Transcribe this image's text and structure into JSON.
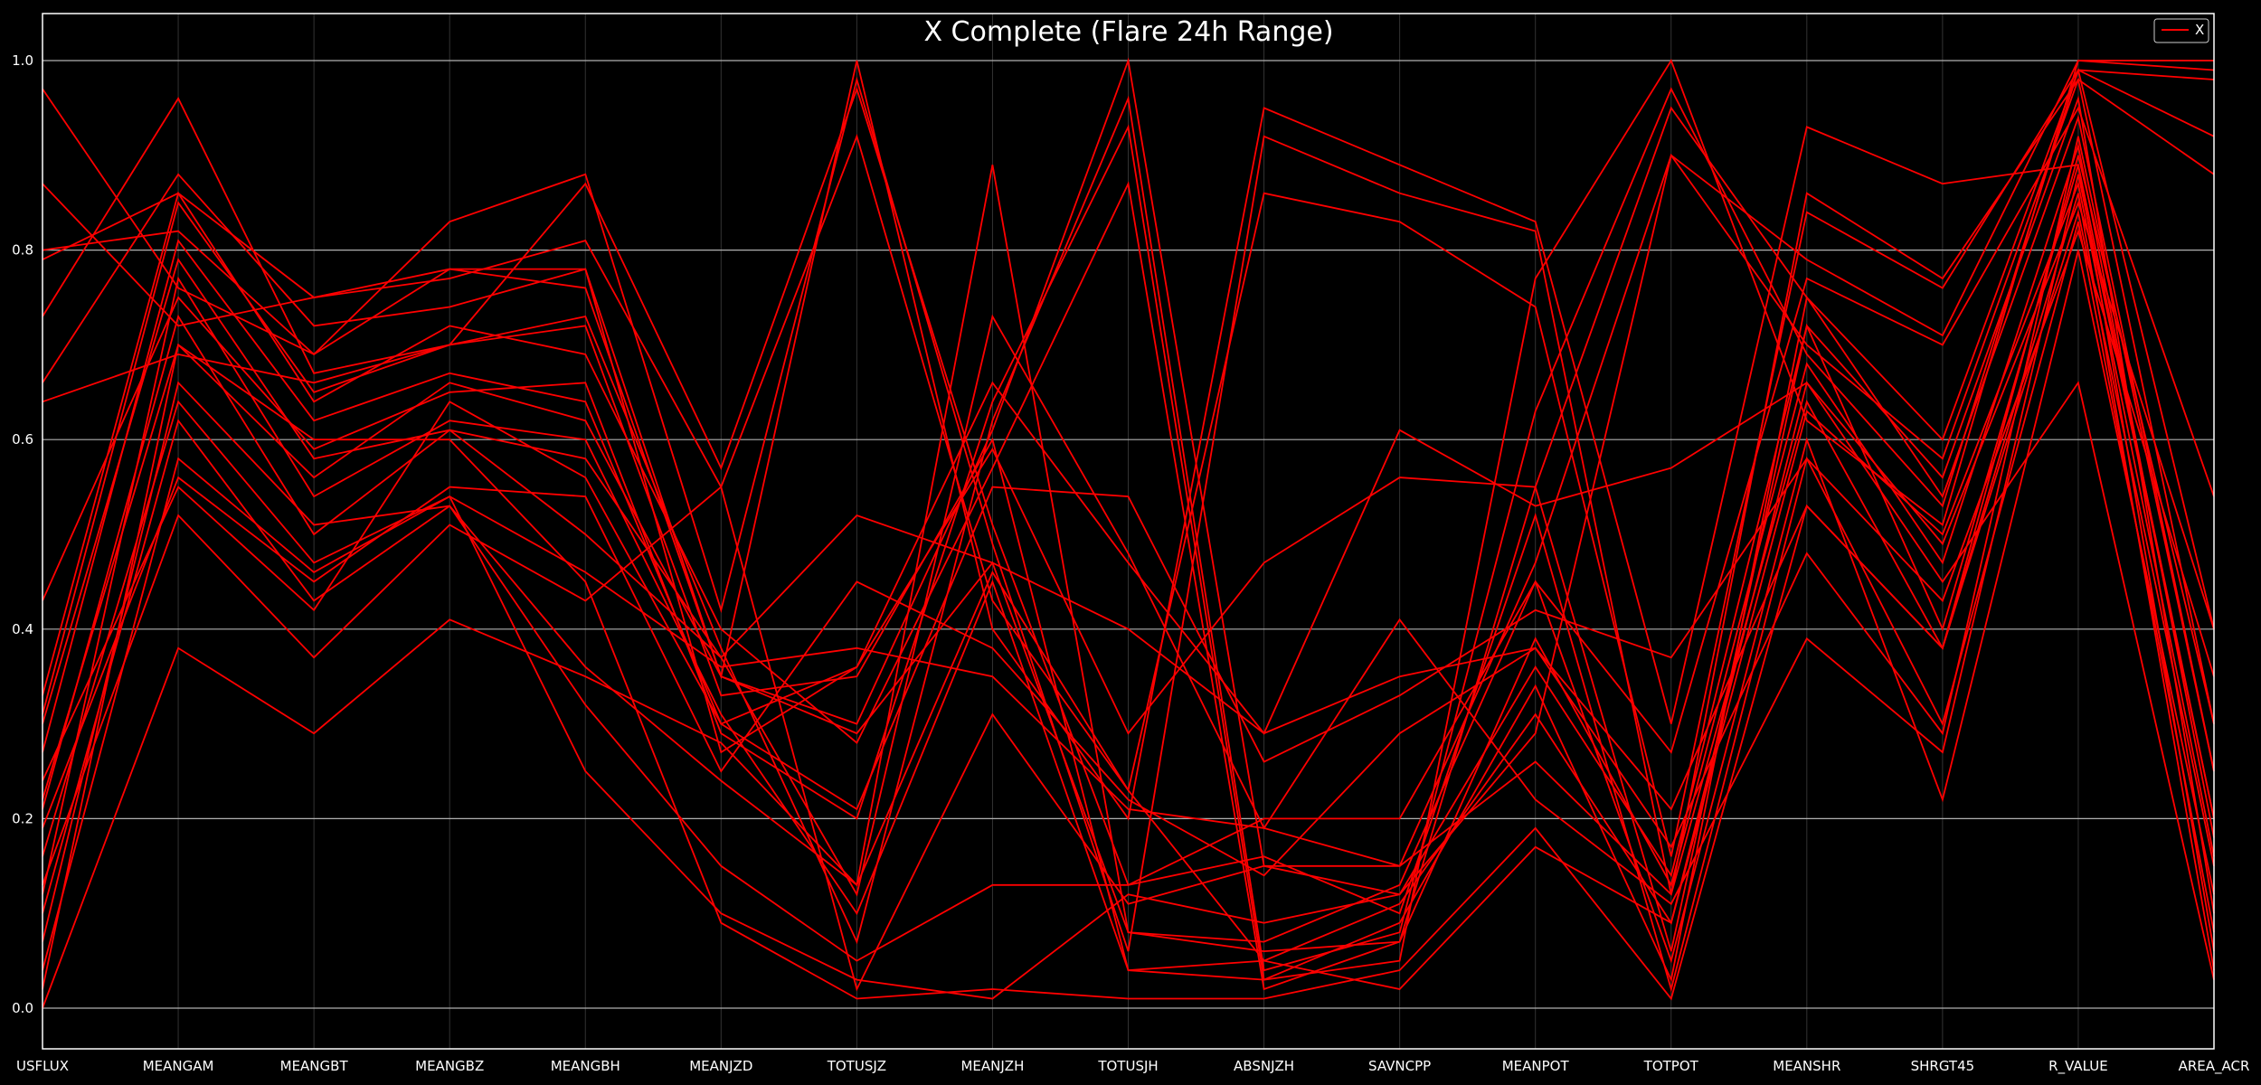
{
  "chart_data": {
    "type": "line",
    "title": "X Complete (Flare 24h Range)",
    "xlabel": "",
    "ylabel": "",
    "ylim": [
      -0.02,
      1.05
    ],
    "yticks": [
      0.0,
      0.2,
      0.4,
      0.6,
      0.8,
      1.0
    ],
    "ytick_labels": [
      "0.0",
      "0.2",
      "0.4",
      "0.6",
      "0.8",
      "1.0"
    ],
    "grid": true,
    "legend": {
      "placement": "top-right",
      "entries": [
        "X"
      ]
    },
    "categories": [
      "USFLUX",
      "MEANGAM",
      "MEANGBT",
      "MEANGBZ",
      "MEANGBH",
      "MEANJZD",
      "TOTUSJZ",
      "MEANJZH",
      "TOTUSJH",
      "ABSNJZH",
      "SAVNCPP",
      "MEANPOT",
      "TOTPOT",
      "MEANSHR",
      "SHRGT45",
      "R_VALUE",
      "AREA_ACR"
    ],
    "colors": {
      "background": "#000000",
      "series": "#ff0000",
      "grid": "#b0b0b0",
      "text": "#ffffff"
    },
    "series": [
      {
        "values": [
          0.97,
          0.76,
          0.69,
          0.78,
          0.78,
          0.27,
          0.36,
          0.59,
          0.29,
          0.47,
          0.56,
          0.55,
          0.06,
          0.72,
          0.56,
          0.96,
          0.1
        ]
      },
      {
        "values": [
          0.87,
          0.72,
          0.75,
          0.78,
          0.76,
          0.35,
          1.0,
          0.4,
          0.2,
          0.95,
          0.89,
          0.83,
          0.3,
          0.93,
          0.87,
          0.89,
          0.2
        ]
      },
      {
        "values": [
          0.8,
          0.82,
          0.69,
          0.83,
          0.88,
          0.42,
          0.98,
          0.49,
          0.06,
          0.92,
          0.86,
          0.82,
          0.12,
          0.86,
          0.77,
          0.98,
          0.3
        ]
      },
      {
        "values": [
          0.79,
          0.86,
          0.75,
          0.77,
          0.81,
          0.55,
          0.92,
          0.43,
          0.23,
          0.86,
          0.83,
          0.74,
          0.16,
          0.84,
          0.76,
          0.99,
          0.4
        ]
      },
      {
        "values": [
          0.73,
          0.96,
          0.67,
          0.7,
          0.87,
          0.57,
          0.97,
          0.51,
          0.13,
          0.2,
          0.2,
          0.45,
          0.27,
          0.77,
          0.7,
          0.95,
          0.54
        ]
      },
      {
        "values": [
          0.66,
          0.88,
          0.72,
          0.74,
          0.78,
          0.35,
          0.3,
          0.61,
          1.0,
          0.15,
          0.12,
          0.29,
          0.9,
          0.79,
          0.71,
          1.0,
          0.99
        ]
      },
      {
        "values": [
          0.64,
          0.69,
          0.66,
          0.7,
          0.73,
          0.38,
          0.07,
          0.62,
          0.96,
          0.04,
          0.08,
          0.63,
          0.97,
          0.69,
          0.53,
          0.99,
          0.98
        ]
      },
      {
        "values": [
          0.43,
          0.75,
          0.59,
          0.65,
          0.66,
          0.29,
          0.2,
          0.64,
          0.93,
          0.03,
          0.05,
          0.77,
          1.0,
          0.62,
          0.51,
          1.0,
          1.0
        ]
      },
      {
        "values": [
          0.33,
          0.86,
          0.64,
          0.72,
          0.69,
          0.4,
          0.28,
          0.57,
          0.87,
          0.02,
          0.07,
          0.55,
          0.95,
          0.75,
          0.6,
          0.99,
          0.92
        ]
      },
      {
        "values": [
          0.3,
          0.79,
          0.58,
          0.61,
          0.58,
          0.37,
          0.12,
          0.73,
          0.48,
          0.19,
          0.15,
          0.47,
          0.9,
          0.7,
          0.58,
          0.98,
          0.88
        ]
      },
      {
        "values": [
          0.27,
          0.81,
          0.62,
          0.67,
          0.64,
          0.3,
          0.36,
          0.66,
          0.47,
          0.29,
          0.61,
          0.53,
          0.57,
          0.66,
          0.49,
          0.85,
          0.4
        ]
      },
      {
        "values": [
          0.24,
          0.55,
          0.42,
          0.64,
          0.56,
          0.3,
          0.21,
          0.55,
          0.54,
          0.26,
          0.33,
          0.42,
          0.37,
          0.58,
          0.43,
          0.82,
          0.35
        ]
      },
      {
        "values": [
          0.21,
          0.73,
          0.5,
          0.61,
          0.5,
          0.37,
          0.52,
          0.47,
          0.4,
          0.29,
          0.35,
          0.38,
          0.21,
          0.53,
          0.38,
          0.9,
          0.3
        ]
      },
      {
        "values": [
          0.19,
          0.56,
          0.45,
          0.55,
          0.54,
          0.25,
          0.45,
          0.38,
          0.22,
          0.14,
          0.29,
          0.38,
          0.17,
          0.48,
          0.29,
          0.92,
          0.25
        ]
      },
      {
        "values": [
          0.16,
          0.64,
          0.47,
          0.54,
          0.46,
          0.36,
          0.38,
          0.35,
          0.21,
          0.19,
          0.41,
          0.22,
          0.11,
          0.39,
          0.27,
          0.88,
          0.2
        ]
      },
      {
        "values": [
          0.13,
          0.52,
          0.37,
          0.51,
          0.43,
          0.55,
          0.02,
          0.31,
          0.11,
          0.15,
          0.15,
          0.26,
          0.12,
          0.64,
          0.38,
          0.84,
          0.15
        ]
      },
      {
        "values": [
          0.1,
          0.62,
          0.43,
          0.53,
          0.36,
          0.24,
          0.13,
          0.89,
          0.08,
          0.07,
          0.13,
          0.45,
          0.05,
          0.6,
          0.22,
          0.8,
          0.12
        ]
      },
      {
        "values": [
          0.07,
          0.66,
          0.51,
          0.53,
          0.32,
          0.15,
          0.05,
          0.13,
          0.13,
          0.16,
          0.1,
          0.52,
          0.02,
          0.58,
          0.3,
          0.83,
          0.08
        ]
      },
      {
        "values": [
          0.04,
          0.58,
          0.46,
          0.54,
          0.25,
          0.1,
          0.03,
          0.01,
          0.12,
          0.09,
          0.12,
          0.36,
          0.14,
          0.72,
          0.4,
          0.89,
          0.06
        ]
      },
      {
        "values": [
          0.02,
          0.7,
          0.6,
          0.6,
          0.45,
          0.09,
          0.01,
          0.02,
          0.01,
          0.01,
          0.04,
          0.19,
          0.01,
          0.53,
          0.38,
          0.86,
          0.04
        ]
      },
      {
        "values": [
          0.0,
          0.38,
          0.29,
          0.41,
          0.35,
          0.28,
          0.13,
          0.46,
          0.23,
          0.05,
          0.02,
          0.17,
          0.09,
          0.66,
          0.45,
          0.66,
          0.03
        ]
      },
      {
        "values": [
          0.31,
          0.85,
          0.65,
          0.7,
          0.72,
          0.33,
          0.35,
          0.6,
          0.04,
          0.03,
          0.09,
          0.34,
          0.03,
          0.75,
          0.54,
          0.94,
          0.25
        ]
      },
      {
        "values": [
          0.22,
          0.7,
          0.56,
          0.66,
          0.62,
          0.35,
          0.29,
          0.47,
          0.08,
          0.06,
          0.07,
          0.39,
          0.13,
          0.68,
          0.47,
          0.91,
          0.18
        ]
      },
      {
        "values": [
          0.12,
          0.77,
          0.54,
          0.62,
          0.6,
          0.31,
          0.1,
          0.45,
          0.04,
          0.05,
          0.11,
          0.31,
          0.09,
          0.63,
          0.5,
          0.87,
          0.16
        ]
      }
    ]
  }
}
